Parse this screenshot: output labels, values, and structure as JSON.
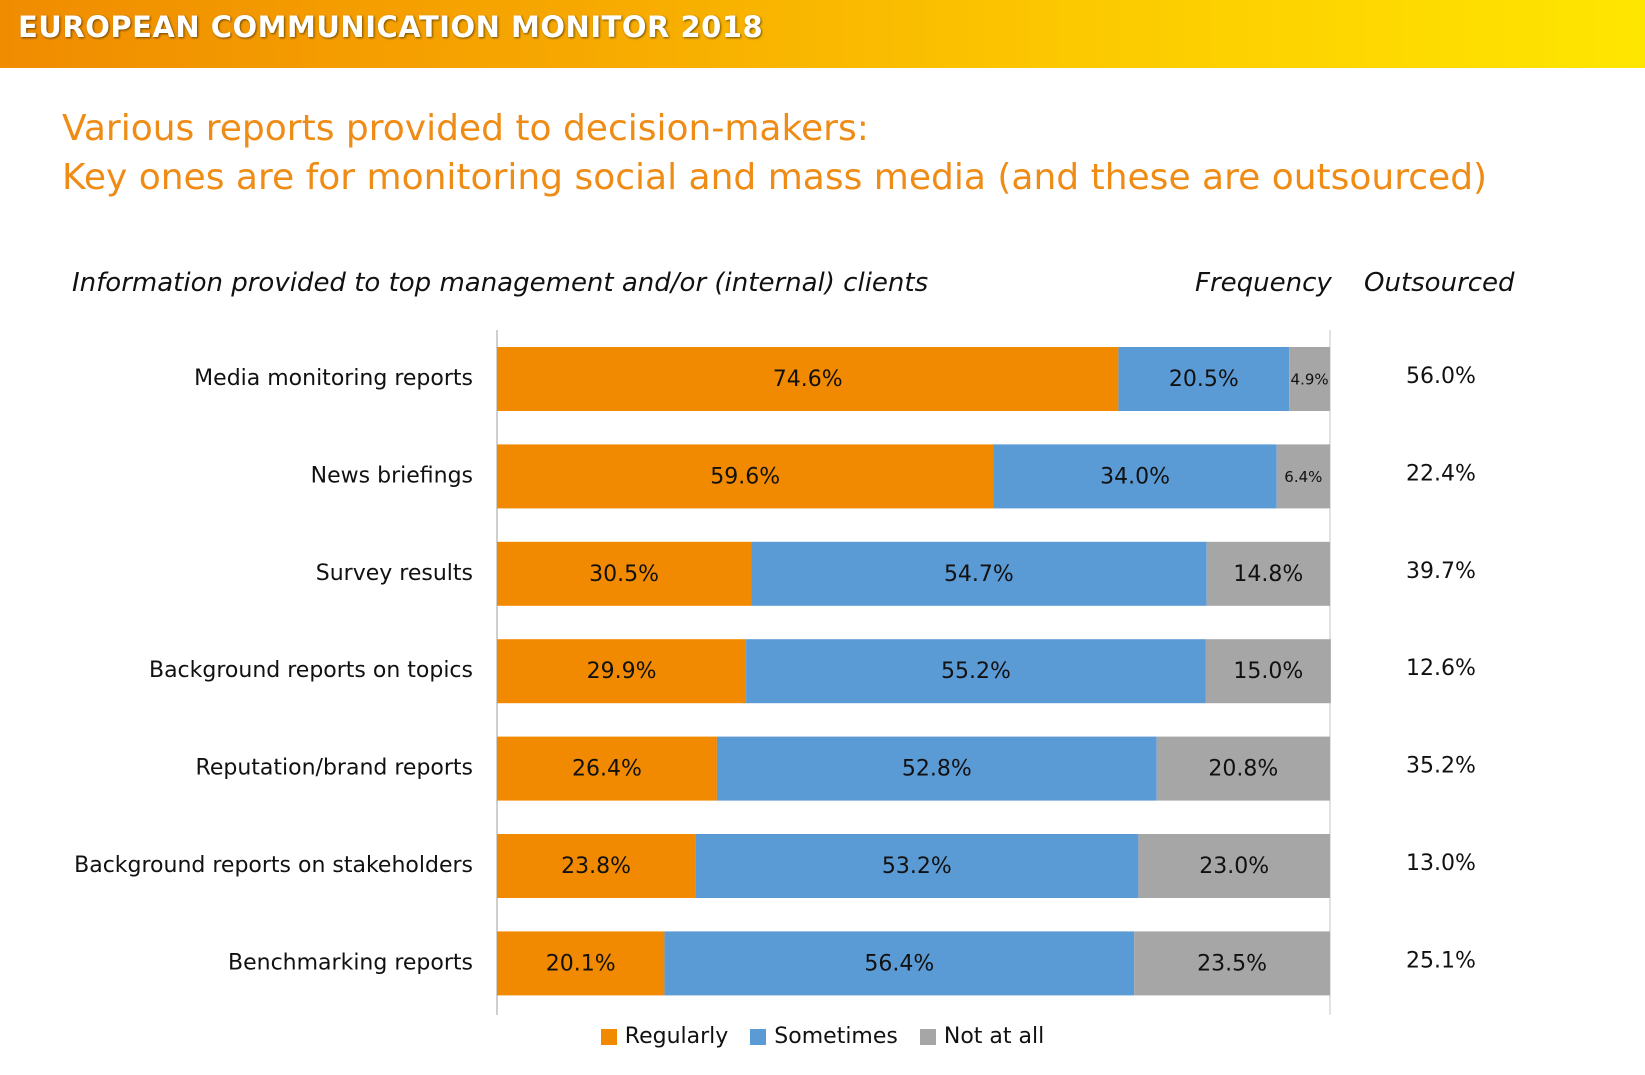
{
  "banner": {
    "title": "EUROPEAN COMMUNICATION MONITOR 2018"
  },
  "headline": {
    "line1": "Various reports provided to decision-makers:",
    "line2": "Key ones are for monitoring social and mass media (and these are outsourced)"
  },
  "columns": {
    "info": "Information provided to top management and/or (internal) clients",
    "frequency": "Frequency",
    "outsourced": "Outsourced"
  },
  "colors": {
    "regularly": "#f18a00",
    "sometimes": "#5b9bd5",
    "not_at_all": "#a6a6a6",
    "headline": "#ef8c16"
  },
  "chart_data": {
    "type": "bar",
    "orientation": "horizontal",
    "stacked": true,
    "xlim": [
      0,
      100
    ],
    "categories": [
      "Media monitoring reports",
      "News briefings",
      "Survey results",
      "Background reports on topics",
      "Reputation/brand reports",
      "Background reports on stakeholders",
      "Benchmarking reports"
    ],
    "series": [
      {
        "name": "Regularly",
        "values": [
          74.6,
          59.6,
          30.5,
          29.9,
          26.4,
          23.8,
          20.1
        ],
        "labels": [
          "74.6%",
          "59.6%",
          "30.5%",
          "29.9%",
          "26.4%",
          "23.8%",
          "20.1%"
        ]
      },
      {
        "name": "Sometimes",
        "values": [
          20.5,
          34.0,
          54.7,
          55.2,
          52.8,
          53.2,
          56.4
        ],
        "labels": [
          "20.5%",
          "34.0%",
          "54.7%",
          "55.2%",
          "52.8%",
          "53.2%",
          "56.4%"
        ]
      },
      {
        "name": "Not at all",
        "values": [
          4.9,
          6.4,
          14.8,
          15.0,
          20.8,
          23.0,
          23.5
        ],
        "labels": [
          "4.9%",
          "6.4%",
          "14.8%",
          "15.0%",
          "20.8%",
          "23.0%",
          "23.5%"
        ]
      }
    ],
    "outsourced": [
      "56.0%",
      "22.4%",
      "39.7%",
      "12.6%",
      "35.2%",
      "13.0%",
      "25.1%"
    ],
    "legend": "bottom"
  }
}
